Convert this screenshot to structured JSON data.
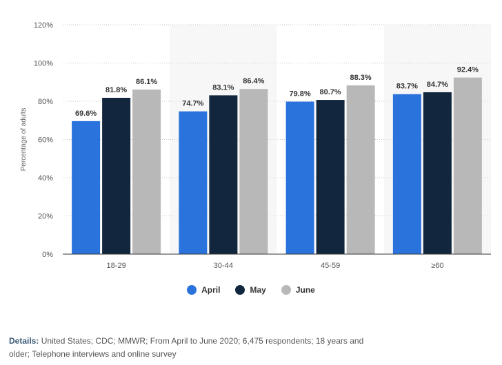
{
  "chart_data": {
    "type": "bar",
    "categories": [
      "18-29",
      "30-44",
      "45-59",
      "≥60"
    ],
    "series": [
      {
        "name": "April",
        "color": "#2a73dc",
        "values": [
          69.6,
          74.7,
          79.8,
          83.7
        ],
        "labels": [
          "69.6%",
          "74.7%",
          "79.8%",
          "83.7%"
        ]
      },
      {
        "name": "May",
        "color": "#12263d",
        "values": [
          81.8,
          83.1,
          80.7,
          84.7
        ],
        "labels": [
          "81.8%",
          "83.1%",
          "80.7%",
          "84.7%"
        ]
      },
      {
        "name": "June",
        "color": "#b8b8b8",
        "values": [
          86.1,
          86.4,
          88.3,
          92.4
        ],
        "labels": [
          "86.1%",
          "86.4%",
          "88.3%",
          "92.4%"
        ]
      }
    ],
    "ylabel": "Percentage of adults",
    "ylim": [
      0,
      120
    ],
    "yticks": [
      0,
      20,
      40,
      60,
      80,
      100,
      120
    ],
    "ytick_labels": [
      "0%",
      "20%",
      "40%",
      "60%",
      "80%",
      "100%",
      "120%"
    ],
    "grid": true,
    "legend": "bottom-center"
  },
  "details": {
    "label": "Details:",
    "text": "United States; CDC; MMWR; From April to June 2020; 6,475 respondents; 18 years and older; Telephone interviews and online survey"
  }
}
